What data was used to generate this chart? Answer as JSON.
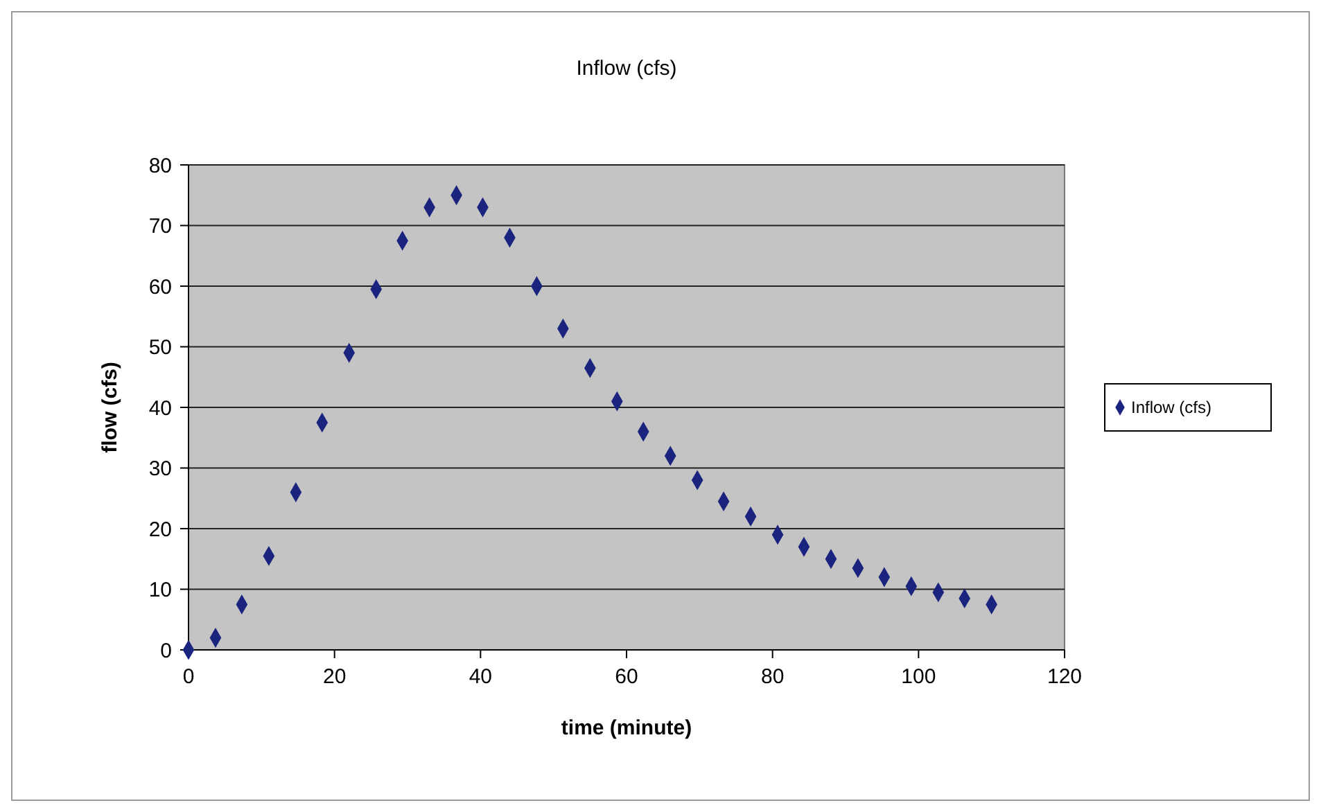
{
  "chart_data": {
    "type": "scatter",
    "title": "Inflow (cfs)",
    "xlabel": "time (minute)",
    "ylabel": "flow (cfs)",
    "x": [
      0,
      3.7,
      7.3,
      11,
      14.7,
      18.3,
      22,
      25.7,
      29.3,
      33,
      36.7,
      40.3,
      44,
      47.7,
      51.3,
      55,
      58.7,
      62.3,
      66,
      69.7,
      73.3,
      77,
      80.7,
      84.3,
      88,
      91.7,
      95.3,
      99,
      102.7,
      106.3,
      110
    ],
    "series": [
      {
        "name": "Inflow (cfs)",
        "color": "#1a237e",
        "values": [
          0,
          2,
          7.5,
          15.5,
          26,
          37.5,
          49,
          59.5,
          67.5,
          73,
          75,
          73,
          68,
          60,
          53,
          46.5,
          41,
          36,
          32,
          28,
          24.5,
          22,
          19,
          17,
          15,
          13.5,
          12,
          10.5,
          9.5,
          8.5,
          7.5
        ]
      }
    ],
    "xlim": [
      0,
      120
    ],
    "xticks": [
      0,
      20,
      40,
      60,
      80,
      100,
      120
    ],
    "ylim": [
      0,
      80
    ],
    "yticks": [
      0,
      10,
      20,
      30,
      40,
      50,
      60,
      70,
      80
    ],
    "grid": "y",
    "legend": "right",
    "marker": "diamond"
  }
}
